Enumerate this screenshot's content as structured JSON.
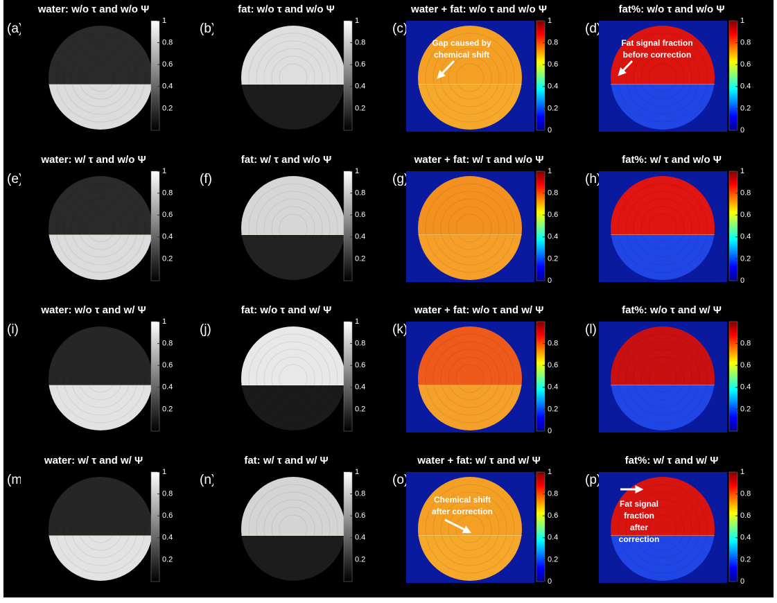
{
  "panels": [
    {
      "label": "(a)",
      "title": "water: w/o τ and w/o Ψ",
      "colormap": "gray",
      "clim": [
        0,
        1
      ],
      "ticks": [
        0.2,
        0.4,
        0.6,
        0.8,
        1
      ],
      "colors": {
        "background": "#000000",
        "top": "#2a2a2a",
        "bottom": "#dcdcdc"
      }
    },
    {
      "label": "(b)",
      "title": "fat: w/o τ and w/o Ψ",
      "colormap": "gray",
      "clim": [
        0,
        1
      ],
      "ticks": [
        0.2,
        0.4,
        0.6,
        0.8,
        1
      ],
      "colors": {
        "background": "#000000",
        "top": "#dedede",
        "bottom": "#1c1c1c"
      }
    },
    {
      "label": "(c)",
      "title": "water + fat: w/o τ and w/o Ψ",
      "colormap": "jet",
      "clim": [
        0,
        1
      ],
      "ticks": [
        0,
        0.2,
        0.4,
        0.6,
        0.8,
        1
      ],
      "colors": {
        "background": "#0a1a9e",
        "top": "#f4a024",
        "bottom": "#f6a82a"
      },
      "annotation": [
        "Gap caused by",
        "chemical shift"
      ]
    },
    {
      "label": "(d)",
      "title": "fat%: w/o τ and w/o Ψ",
      "colormap": "jet",
      "clim": [
        0,
        1
      ],
      "ticks": [
        0,
        0.2,
        0.4,
        0.6,
        0.8,
        1
      ],
      "colors": {
        "background": "#0a1a9e",
        "top": "#dc1410",
        "bottom": "#2146e6"
      },
      "annotation": [
        "Fat signal fraction",
        "before correction"
      ]
    },
    {
      "label": "(e)",
      "title": "water: w/ τ and w/o Ψ",
      "colormap": "gray",
      "clim": [
        0,
        1
      ],
      "ticks": [
        0.2,
        0.4,
        0.6,
        0.8,
        1
      ],
      "colors": {
        "background": "#000000",
        "top": "#2a2a2a",
        "bottom": "#dcdcdc"
      }
    },
    {
      "label": "(f)",
      "title": "fat: w/ τ and w/o Ψ",
      "colormap": "gray",
      "clim": [
        0,
        1
      ],
      "ticks": [
        0.2,
        0.4,
        0.6,
        0.8,
        1
      ],
      "colors": {
        "background": "#000000",
        "top": "#d6d6d6",
        "bottom": "#222222"
      }
    },
    {
      "label": "(g)",
      "title": "water + fat: w/ τ and w/o Ψ",
      "colormap": "jet",
      "clim": [
        0,
        1
      ],
      "ticks": [
        0,
        0.2,
        0.4,
        0.6,
        0.8,
        1
      ],
      "colors": {
        "background": "#0a1a9e",
        "top": "#f49020",
        "bottom": "#f6a02a"
      }
    },
    {
      "label": "(h)",
      "title": "fat%: w/ τ and w/o Ψ",
      "colormap": "jet",
      "clim": [
        0,
        1
      ],
      "ticks": [
        0,
        0.2,
        0.4,
        0.6,
        0.8,
        1
      ],
      "colors": {
        "background": "#0a1a9e",
        "top": "#e01410",
        "bottom": "#2146e6"
      }
    },
    {
      "label": "(i)",
      "title": "water: w/o τ and w/ Ψ",
      "colormap": "gray",
      "clim": [
        0,
        1
      ],
      "ticks": [
        0.2,
        0.4,
        0.6,
        0.8,
        1
      ],
      "colors": {
        "background": "#000000",
        "top": "#262626",
        "bottom": "#e2e2e2"
      }
    },
    {
      "label": "(j)",
      "title": "fat: w/o τ and w/ Ψ",
      "colormap": "gray",
      "clim": [
        0,
        1
      ],
      "ticks": [
        0.2,
        0.4,
        0.6,
        0.8,
        1
      ],
      "colors": {
        "background": "#000000",
        "top": "#e8e8e8",
        "bottom": "#1a1a1a"
      }
    },
    {
      "label": "(k)",
      "title": "water + fat: w/o τ and w/ Ψ",
      "colormap": "jet",
      "clim": [
        0,
        1
      ],
      "ticks": [
        0,
        0.2,
        0.4,
        0.6,
        0.8
      ],
      "colors": {
        "background": "#0a1a9e",
        "top": "#ee5a1a",
        "bottom": "#f4a02a"
      }
    },
    {
      "label": "(l)",
      "title": "fat%: w/o τ and w/ Ψ",
      "colormap": "jet",
      "clim": [
        0,
        1
      ],
      "ticks": [
        0.2,
        0.4,
        0.6,
        0.8
      ],
      "colors": {
        "background": "#0a1a9e",
        "top": "#c81010",
        "bottom": "#2146e6"
      }
    },
    {
      "label": "(m)",
      "title": "water: w/ τ and w/ Ψ",
      "colormap": "gray",
      "clim": [
        0,
        1
      ],
      "ticks": [
        0.2,
        0.4,
        0.6,
        0.8,
        1
      ],
      "colors": {
        "background": "#000000",
        "top": "#262626",
        "bottom": "#e2e2e2"
      }
    },
    {
      "label": "(n)",
      "title": "fat: w/ τ and w/ Ψ",
      "colormap": "gray",
      "clim": [
        0,
        1
      ],
      "ticks": [
        0.2,
        0.4,
        0.6,
        0.8,
        1
      ],
      "colors": {
        "background": "#000000",
        "top": "#d4d4d4",
        "bottom": "#1c1c1c"
      }
    },
    {
      "label": "(o)",
      "title": "water + fat: w/ τ and w/ Ψ",
      "colormap": "jet",
      "clim": [
        0,
        1
      ],
      "ticks": [
        0,
        0.2,
        0.4,
        0.6,
        0.8,
        1
      ],
      "colors": {
        "background": "#0a1a9e",
        "top": "#f4a024",
        "bottom": "#f6a82a"
      },
      "annotation": [
        "Chemical shift",
        "after correction"
      ]
    },
    {
      "label": "(p)",
      "title": "fat%: w/ τ and w/ Ψ",
      "colormap": "jet",
      "clim": [
        0,
        1
      ],
      "ticks": [
        0,
        0.2,
        0.4,
        0.6,
        0.8,
        1
      ],
      "colors": {
        "background": "#0a1a9e",
        "top": "#d81410",
        "bottom": "#2146e6"
      },
      "annotation": [
        "Fat signal",
        "fraction",
        "after",
        "correction"
      ]
    }
  ]
}
